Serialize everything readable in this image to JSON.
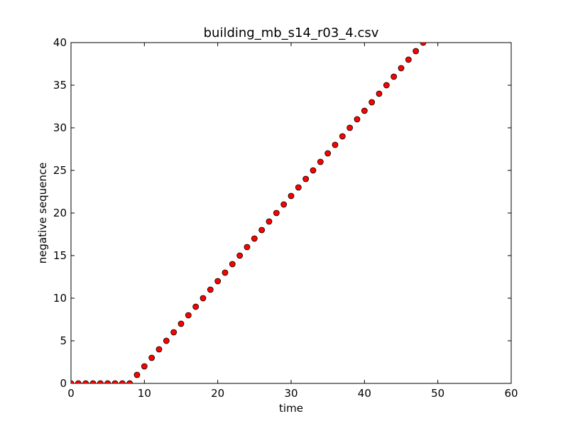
{
  "chart_data": {
    "type": "scatter",
    "title": "building_mb_s14_r03_4.csv",
    "xlabel": "time",
    "ylabel": "negative sequence",
    "xlim": [
      0,
      60
    ],
    "ylim": [
      0,
      40
    ],
    "xticks": [
      0,
      10,
      20,
      30,
      40,
      50,
      60
    ],
    "yticks": [
      0,
      5,
      10,
      15,
      20,
      25,
      30,
      35,
      40
    ],
    "grid": false,
    "legend": "none",
    "marker_color": "#ff0000",
    "marker_edge_color": "#000000",
    "series": [
      {
        "x": [
          0,
          1,
          2,
          3,
          4,
          5,
          6,
          7,
          8,
          9,
          10,
          11,
          12,
          13,
          14,
          15,
          16,
          17,
          18,
          19,
          20,
          21,
          22,
          23,
          24,
          25,
          26,
          27,
          28,
          29,
          30,
          31,
          32,
          33,
          34,
          35,
          36,
          37,
          38,
          39,
          40,
          41,
          42,
          43,
          44,
          45,
          46,
          47,
          48
        ],
        "y": [
          0,
          0,
          0,
          0,
          0,
          0,
          0,
          0,
          0,
          1,
          2,
          3,
          4,
          5,
          6,
          7,
          8,
          9,
          10,
          11,
          12,
          13,
          14,
          15,
          16,
          17,
          18,
          19,
          20,
          21,
          22,
          23,
          24,
          25,
          26,
          27,
          28,
          29,
          30,
          31,
          32,
          33,
          34,
          35,
          36,
          37,
          38,
          39,
          40
        ]
      }
    ]
  }
}
